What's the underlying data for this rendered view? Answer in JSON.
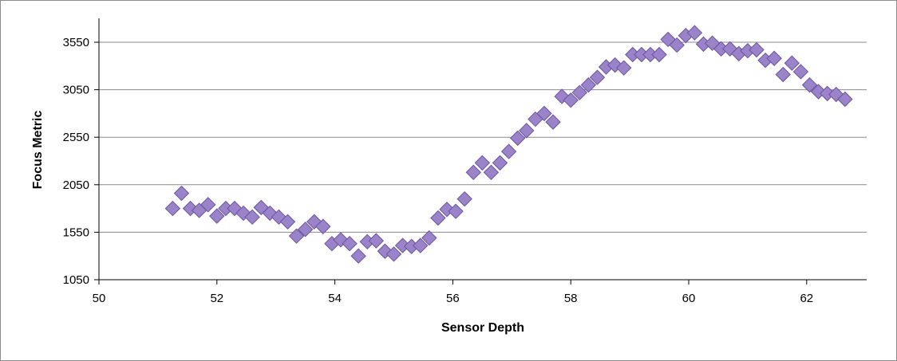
{
  "chart_data": {
    "type": "scatter",
    "title": "",
    "xlabel": "Sensor Depth",
    "ylabel": "Focus Metric",
    "xlim": [
      50,
      63
    ],
    "ylim": [
      1050,
      3700
    ],
    "xticks": [
      50,
      52,
      54,
      56,
      58,
      60,
      62
    ],
    "yticks": [
      1050,
      1550,
      2050,
      2550,
      3050,
      3550
    ],
    "grid": "horizontal",
    "legend": "none",
    "colors": {
      "marker_fill": "#9b83c9",
      "marker_stroke": "#6a55a0",
      "grid": "#8a8a8a"
    },
    "series": [
      {
        "x": [
          51.25,
          51.4,
          51.55,
          51.7,
          51.85,
          52.0,
          52.15,
          52.3,
          52.45,
          52.6,
          52.75,
          52.9,
          53.05,
          53.2,
          53.35,
          53.5,
          53.65,
          53.8,
          53.95,
          54.1,
          54.25,
          54.4,
          54.55,
          54.7,
          54.85,
          55.0,
          55.15,
          55.3,
          55.45,
          55.6,
          55.75,
          55.9,
          56.05,
          56.2,
          56.35,
          56.5,
          56.65,
          56.8,
          56.95,
          57.1,
          57.25,
          57.4,
          57.55,
          57.7,
          57.85,
          58.0,
          58.15,
          58.3,
          58.45,
          58.6,
          58.75,
          58.9,
          59.05,
          59.2,
          59.35,
          59.5,
          59.65,
          59.8,
          59.95,
          60.1,
          60.25,
          60.4,
          60.55,
          60.7,
          60.85,
          61.0,
          61.15,
          61.3,
          61.45,
          61.6,
          61.75,
          61.9,
          62.05,
          62.2,
          62.35,
          62.5,
          62.65
        ],
        "y": [
          1800,
          1960,
          1800,
          1780,
          1840,
          1720,
          1800,
          1800,
          1750,
          1710,
          1810,
          1750,
          1710,
          1660,
          1510,
          1580,
          1660,
          1610,
          1430,
          1470,
          1430,
          1300,
          1450,
          1460,
          1350,
          1320,
          1410,
          1400,
          1410,
          1490,
          1700,
          1790,
          1770,
          1900,
          2180,
          2280,
          2180,
          2280,
          2400,
          2540,
          2620,
          2740,
          2800,
          2710,
          2980,
          2940,
          3020,
          3100,
          3180,
          3290,
          3310,
          3280,
          3420,
          3420,
          3420,
          3420,
          3580,
          3520,
          3620,
          3650,
          3530,
          3540,
          3480,
          3480,
          3430,
          3460,
          3470,
          3360,
          3380,
          3210,
          3330,
          3240,
          3100,
          3030,
          3010,
          3000,
          2950
        ]
      }
    ]
  }
}
